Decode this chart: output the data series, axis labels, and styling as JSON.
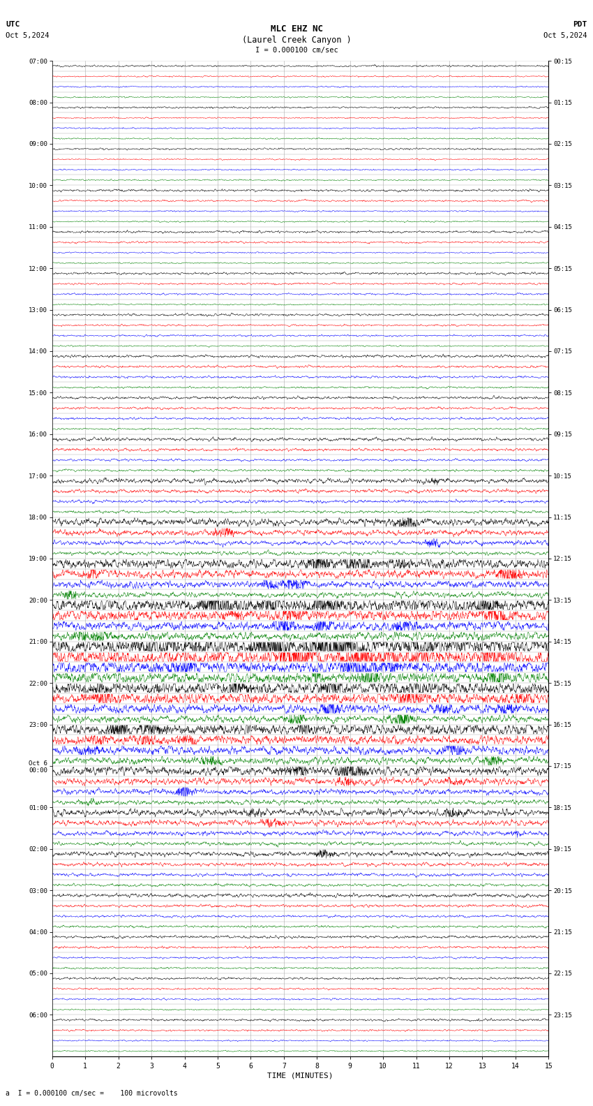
{
  "title_line1": "MLC EHZ NC",
  "title_line2": "(Laurel Creek Canyon )",
  "title_line3": "I = 0.000100 cm/sec",
  "utc_label": "UTC",
  "utc_date": "Oct 5,2024",
  "pdt_label": "PDT",
  "pdt_date": "Oct 5,2024",
  "bottom_label": "a  I = 0.000100 cm/sec =    100 microvolts",
  "xlabel": "TIME (MINUTES)",
  "time_minutes": 15,
  "num_rows": 96,
  "colors_cycle": [
    "black",
    "red",
    "blue",
    "green"
  ],
  "bg_color": "white",
  "grid_color": "#aaaaaa",
  "figsize": [
    8.5,
    15.84
  ],
  "dpi": 100,
  "left_times_utc": [
    "07:00",
    "08:00",
    "09:00",
    "10:00",
    "11:00",
    "12:00",
    "13:00",
    "14:00",
    "15:00",
    "16:00",
    "17:00",
    "18:00",
    "19:00",
    "20:00",
    "21:00",
    "22:00",
    "23:00",
    "Oct 6\n00:00",
    "01:00",
    "02:00",
    "03:00",
    "04:00",
    "05:00",
    "06:00"
  ],
  "right_times_pdt": [
    "00:15",
    "01:15",
    "02:15",
    "03:15",
    "04:15",
    "05:15",
    "06:15",
    "07:15",
    "08:15",
    "09:15",
    "10:15",
    "11:15",
    "12:15",
    "13:15",
    "14:15",
    "15:15",
    "16:15",
    "17:15",
    "18:15",
    "19:15",
    "20:15",
    "21:15",
    "22:15",
    "23:15"
  ],
  "row_noise_levels": [
    0.04,
    0.03,
    0.03,
    0.03,
    0.04,
    0.03,
    0.03,
    0.03,
    0.04,
    0.03,
    0.03,
    0.03,
    0.05,
    0.04,
    0.03,
    0.03,
    0.05,
    0.04,
    0.03,
    0.03,
    0.05,
    0.04,
    0.04,
    0.03,
    0.05,
    0.04,
    0.04,
    0.03,
    0.06,
    0.05,
    0.05,
    0.04,
    0.06,
    0.05,
    0.05,
    0.04,
    0.07,
    0.06,
    0.05,
    0.05,
    0.1,
    0.08,
    0.07,
    0.06,
    0.15,
    0.12,
    0.1,
    0.08,
    0.2,
    0.18,
    0.15,
    0.12,
    0.3,
    0.25,
    0.2,
    0.18,
    0.4,
    0.35,
    0.3,
    0.25,
    0.3,
    0.25,
    0.2,
    0.15,
    0.25,
    0.2,
    0.18,
    0.15,
    0.2,
    0.15,
    0.12,
    0.1,
    0.15,
    0.12,
    0.1,
    0.08,
    0.1,
    0.08,
    0.07,
    0.06,
    0.08,
    0.06,
    0.05,
    0.05,
    0.06,
    0.05,
    0.04,
    0.04,
    0.05,
    0.04,
    0.04,
    0.03,
    0.05,
    0.04,
    0.03,
    0.03
  ]
}
